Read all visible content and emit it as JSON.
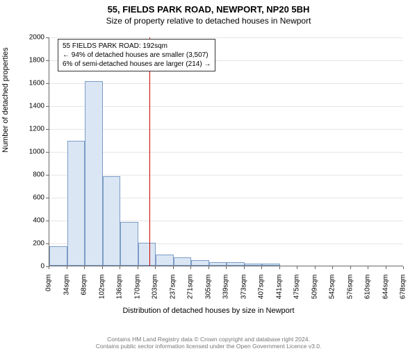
{
  "title_main": "55, FIELDS PARK ROAD, NEWPORT, NP20 5BH",
  "title_sub": "Size of property relative to detached houses in Newport",
  "ylabel": "Number of detached properties",
  "xlabel": "Distribution of detached houses by size in Newport",
  "chart": {
    "type": "histogram",
    "ylim": [
      0,
      2000
    ],
    "ytick_step": 200,
    "xtick_labels": [
      "0sqm",
      "34sqm",
      "68sqm",
      "102sqm",
      "136sqm",
      "170sqm",
      "203sqm",
      "237sqm",
      "271sqm",
      "305sqm",
      "339sqm",
      "373sqm",
      "407sqm",
      "441sqm",
      "475sqm",
      "509sqm",
      "542sqm",
      "576sqm",
      "610sqm",
      "644sqm",
      "678sqm"
    ],
    "bars": [
      170,
      1090,
      1610,
      780,
      380,
      200,
      100,
      70,
      50,
      30,
      30,
      20,
      20,
      0,
      0,
      0,
      0,
      0,
      0,
      0
    ],
    "bar_fill": "#dbe6f4",
    "bar_stroke": "#7a9cc6",
    "grid_color": "#e5e5e5",
    "background_color": "#ffffff",
    "reference_line": {
      "value_sqm": 192,
      "color": "#cc0000"
    }
  },
  "annotation": {
    "line1": "55 FIELDS PARK ROAD: 192sqm",
    "line2": "← 94% of detached houses are smaller (3,507)",
    "line3": "6% of semi-detached houses are larger (214) →"
  },
  "footer_line1": "Contains HM Land Registry data © Crown copyright and database right 2024.",
  "footer_line2": "Contains public sector information licensed under the Open Government Licence v3.0."
}
